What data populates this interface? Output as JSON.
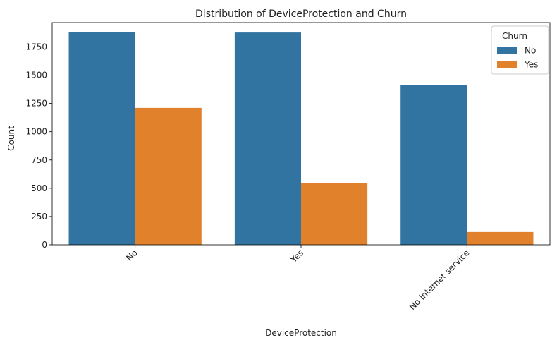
{
  "chart_data": {
    "type": "bar",
    "title": "Distribution of DeviceProtection and Churn",
    "xlabel": "DeviceProtection",
    "ylabel": "Count",
    "categories": [
      "No",
      "Yes",
      "No internet service"
    ],
    "series": [
      {
        "name": "No",
        "color": "#3274a1",
        "values": [
          1884,
          1877,
          1413
        ]
      },
      {
        "name": "Yes",
        "color": "#e1812c",
        "values": [
          1211,
          545,
          113
        ]
      }
    ],
    "ylim": [
      0,
      1965
    ],
    "yticks": [
      0,
      250,
      500,
      750,
      1000,
      1250,
      1500,
      1750
    ],
    "legend": {
      "title": "Churn",
      "position": "top-right"
    },
    "grid": false,
    "xtick_rotation": "45-degree"
  }
}
